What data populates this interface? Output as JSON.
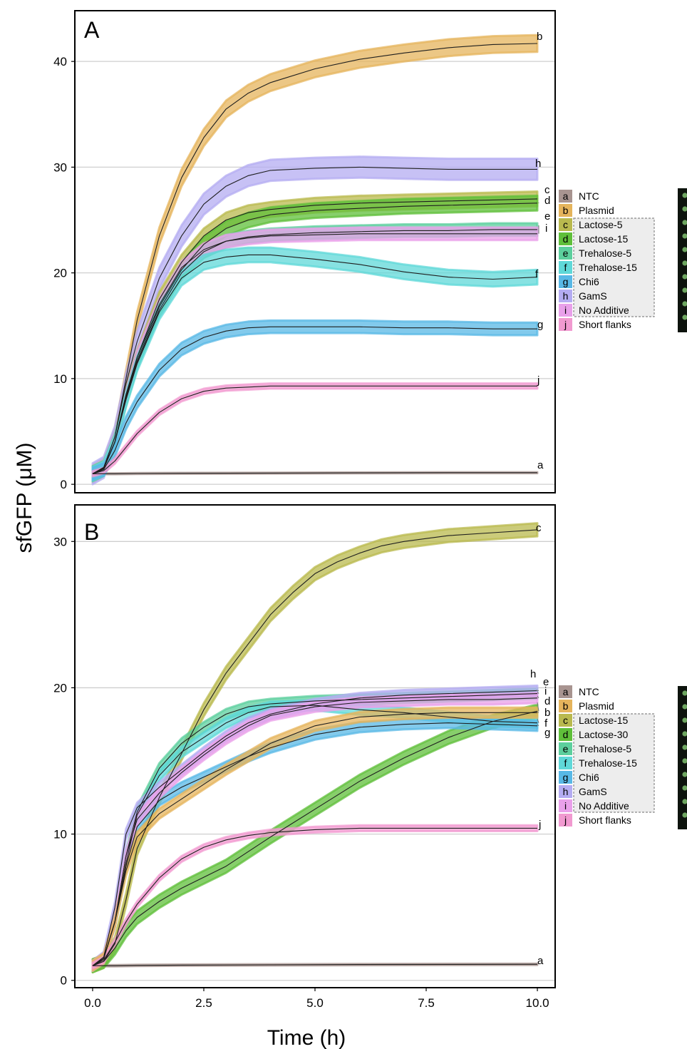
{
  "axis_titles": {
    "y": "sfGFP (μM)",
    "x": "Time (h)"
  },
  "colors": {
    "a": "#a89490",
    "b": "#e5b45c",
    "c": "#b9b94e",
    "d": "#5fbf3a",
    "e": "#5ccf9d",
    "f": "#5fd8d8",
    "g": "#58b8e6",
    "h": "#b4acf2",
    "i": "#e9a0ea",
    "j": "#f19ad0"
  },
  "chart_data": [
    {
      "panel": "A",
      "type": "line",
      "xlabel": "Time (h)",
      "ylabel": "sfGFP (μM)",
      "xlim": [
        -0.4,
        10.4
      ],
      "ylim": [
        -0.8,
        44.8
      ],
      "xticks": [
        "0.0",
        "2.5",
        "5.0",
        "7.5",
        "10.0"
      ],
      "yticks": [
        0,
        10,
        20,
        30,
        40
      ],
      "grid": "horizontal",
      "legend_position": "right",
      "legend": [
        {
          "key": "a",
          "label": "NTC"
        },
        {
          "key": "b",
          "label": "Plasmid"
        },
        {
          "key": "c",
          "label": "Lactose-5"
        },
        {
          "key": "d",
          "label": "Lactose-15"
        },
        {
          "key": "e",
          "label": "Trehalose-5"
        },
        {
          "key": "f",
          "label": "Trehalose-15"
        },
        {
          "key": "g",
          "label": "Chi6"
        },
        {
          "key": "h",
          "label": "GamS"
        },
        {
          "key": "i",
          "label": "No Additive"
        },
        {
          "key": "j",
          "label": "Short flanks"
        }
      ],
      "series": [
        {
          "key": "a",
          "x": [
            0,
            0.25,
            0.5,
            1,
            2,
            4,
            6,
            8,
            10
          ],
          "y": [
            1,
            1,
            1,
            1.02,
            1.04,
            1.06,
            1.08,
            1.1,
            1.1
          ],
          "band": 0.05
        },
        {
          "key": "b",
          "x": [
            0,
            0.25,
            0.5,
            0.75,
            1,
            1.5,
            2,
            2.5,
            3,
            3.5,
            4,
            5,
            6,
            7,
            8,
            9,
            10
          ],
          "y": [
            1,
            1.6,
            4.5,
            10,
            15.5,
            23.5,
            29,
            32.8,
            35.5,
            37,
            38,
            39.3,
            40.2,
            40.8,
            41.3,
            41.6,
            41.7
          ],
          "band": 0.8
        },
        {
          "key": "h",
          "x": [
            0,
            0.25,
            0.5,
            0.75,
            1,
            1.5,
            2,
            2.5,
            3,
            3.5,
            4,
            5,
            6,
            7,
            8,
            9,
            10
          ],
          "y": [
            1,
            1.6,
            4.5,
            9.5,
            13.5,
            19.5,
            23.5,
            26.5,
            28.2,
            29.2,
            29.7,
            29.9,
            30,
            29.9,
            29.8,
            29.8,
            29.8
          ],
          "band": 1.0
        },
        {
          "key": "c",
          "x": [
            0,
            0.25,
            0.5,
            0.75,
            1,
            1.5,
            2,
            2.5,
            3,
            3.5,
            4,
            5,
            6,
            7,
            8,
            9,
            10
          ],
          "y": [
            1,
            1.5,
            4,
            8.5,
            12,
            17.5,
            21,
            23.5,
            25,
            25.7,
            26,
            26.4,
            26.6,
            26.7,
            26.8,
            26.9,
            27
          ],
          "band": 0.7
        },
        {
          "key": "d",
          "x": [
            0,
            0.25,
            0.5,
            0.75,
            1,
            1.5,
            2,
            2.5,
            3,
            3.5,
            4,
            5,
            6,
            7,
            8,
            9,
            10
          ],
          "y": [
            1,
            1.5,
            4,
            8.2,
            11.7,
            16.8,
            20.3,
            22.7,
            24.2,
            25,
            25.5,
            25.9,
            26.1,
            26.3,
            26.4,
            26.5,
            26.6
          ],
          "band": 0.7
        },
        {
          "key": "e",
          "x": [
            0,
            0.25,
            0.5,
            0.75,
            1,
            1.5,
            2,
            2.5,
            3,
            3.5,
            4,
            5,
            6,
            7,
            8,
            9,
            10
          ],
          "y": [
            1,
            1.5,
            4,
            8,
            11.5,
            16.5,
            20,
            22,
            23,
            23.4,
            23.6,
            23.8,
            23.9,
            24,
            24,
            24.1,
            24.1
          ],
          "band": 0.6
        },
        {
          "key": "i",
          "x": [
            0,
            0.25,
            0.5,
            0.75,
            1,
            1.5,
            2,
            2.5,
            3,
            3.5,
            4,
            5,
            6,
            7,
            8,
            9,
            10
          ],
          "y": [
            1,
            1.5,
            4,
            8.3,
            12,
            17,
            20.5,
            22.2,
            23,
            23.3,
            23.5,
            23.6,
            23.7,
            23.7,
            23.7,
            23.7,
            23.7
          ],
          "band": 0.6
        },
        {
          "key": "f",
          "x": [
            0,
            0.25,
            0.5,
            0.75,
            1,
            1.5,
            2,
            2.5,
            3,
            3.5,
            4,
            5,
            6,
            7,
            8,
            9,
            10
          ],
          "y": [
            1,
            1.5,
            4,
            8,
            11.4,
            16.3,
            19.5,
            21,
            21.5,
            21.7,
            21.7,
            21.3,
            20.8,
            20.1,
            19.6,
            19.4,
            19.6
          ],
          "band": 0.7
        },
        {
          "key": "g",
          "x": [
            0,
            0.25,
            0.5,
            0.75,
            1,
            1.5,
            2,
            2.5,
            3,
            3.5,
            4,
            5,
            6,
            7,
            8,
            9,
            10
          ],
          "y": [
            1,
            1.4,
            3.2,
            5.8,
            7.8,
            10.8,
            12.8,
            13.9,
            14.5,
            14.8,
            14.9,
            14.9,
            14.9,
            14.8,
            14.8,
            14.7,
            14.7
          ],
          "band": 0.6
        },
        {
          "key": "j",
          "x": [
            0,
            0.25,
            0.5,
            0.75,
            1,
            1.5,
            2,
            2.5,
            3,
            3.5,
            4,
            5,
            6,
            7,
            8,
            9,
            10
          ],
          "y": [
            1,
            1.3,
            2.2,
            3.5,
            4.8,
            6.8,
            8.1,
            8.8,
            9.1,
            9.2,
            9.3,
            9.3,
            9.3,
            9.3,
            9.3,
            9.3,
            9.3
          ],
          "band": 0.25
        }
      ],
      "end_labels": [
        {
          "key": "b",
          "text": "b"
        },
        {
          "key": "h",
          "text": "h"
        },
        {
          "key": "c",
          "text": "c"
        },
        {
          "key": "d",
          "text": "d"
        },
        {
          "key": "e",
          "text": "e"
        },
        {
          "key": "i",
          "text": "i"
        },
        {
          "key": "f",
          "text": "f"
        },
        {
          "key": "g",
          "text": "g"
        },
        {
          "key": "j",
          "text": "j"
        },
        {
          "key": "a",
          "text": "a"
        }
      ]
    },
    {
      "panel": "B",
      "type": "line",
      "xlabel": "Time (h)",
      "ylabel": "sfGFP (μM)",
      "xlim": [
        -0.4,
        10.4
      ],
      "ylim": [
        -0.5,
        32.5
      ],
      "xticks": [
        "0.0",
        "2.5",
        "5.0",
        "7.5",
        "10.0"
      ],
      "yticks": [
        0,
        10,
        20,
        30
      ],
      "grid": "horizontal",
      "legend_position": "right",
      "legend": [
        {
          "key": "a",
          "label": "NTC"
        },
        {
          "key": "b",
          "label": "Plasmid"
        },
        {
          "key": "c",
          "label": "Lactose-15"
        },
        {
          "key": "d",
          "label": "Lactose-30"
        },
        {
          "key": "e",
          "label": "Trehalose-5"
        },
        {
          "key": "f",
          "label": "Trehalose-15"
        },
        {
          "key": "g",
          "label": "Chi6"
        },
        {
          "key": "h",
          "label": "GamS"
        },
        {
          "key": "i",
          "label": "No Additive"
        },
        {
          "key": "j",
          "label": "Short flanks"
        }
      ],
      "series": [
        {
          "key": "a",
          "x": [
            0,
            0.5,
            1,
            2,
            4,
            6,
            8,
            10
          ],
          "y": [
            1,
            1,
            1.02,
            1.04,
            1.06,
            1.08,
            1.09,
            1.1
          ],
          "band": 0.05
        },
        {
          "key": "c",
          "x": [
            0,
            0.25,
            0.5,
            0.75,
            1,
            1.5,
            2,
            2.5,
            3,
            3.5,
            4,
            4.5,
            5,
            5.5,
            6,
            6.5,
            7,
            7.5,
            8,
            9,
            10
          ],
          "y": [
            1,
            1.3,
            2.5,
            5.5,
            9,
            12.5,
            15.5,
            18.5,
            21,
            23,
            25,
            26.5,
            27.8,
            28.6,
            29.2,
            29.7,
            30,
            30.2,
            30.4,
            30.6,
            30.8
          ],
          "band": 0.45
        },
        {
          "key": "d",
          "x": [
            0,
            0.25,
            0.5,
            0.75,
            1,
            1.5,
            2,
            3,
            4,
            5,
            6,
            7,
            8,
            9,
            10
          ],
          "y": [
            1,
            1.3,
            2.2,
            3.4,
            4.3,
            5.4,
            6.3,
            7.8,
            9.8,
            11.7,
            13.6,
            15.2,
            16.6,
            17.7,
            18.4
          ],
          "band": 0.45
        },
        {
          "key": "e",
          "x": [
            0,
            0.25,
            0.5,
            0.75,
            1,
            1.5,
            2,
            2.5,
            3,
            3.5,
            4,
            5,
            6,
            7,
            8,
            9,
            10
          ],
          "y": [
            1,
            1.5,
            4,
            8.5,
            11.5,
            14.5,
            16.2,
            17.3,
            18.2,
            18.7,
            18.9,
            19.1,
            19.2,
            19.3,
            19.4,
            19.5,
            19.6
          ],
          "band": 0.35
        },
        {
          "key": "f",
          "x": [
            0,
            0.25,
            0.5,
            0.75,
            1,
            1.5,
            2,
            2.5,
            3,
            3.5,
            4,
            5,
            6,
            7,
            8,
            9,
            10
          ],
          "y": [
            1,
            1.5,
            4,
            8,
            11.3,
            14,
            15.6,
            16.6,
            17.6,
            18.3,
            18.7,
            18.8,
            18.5,
            18.3,
            18,
            17.7,
            17.6
          ],
          "band": 0.35
        },
        {
          "key": "g",
          "x": [
            0,
            0.25,
            0.5,
            0.75,
            1,
            1.5,
            2,
            2.5,
            3,
            3.5,
            4,
            5,
            6,
            7,
            8,
            9,
            10
          ],
          "y": [
            1,
            1.5,
            4,
            7.8,
            10.5,
            12.3,
            13.2,
            13.9,
            14.6,
            15.3,
            15.9,
            16.8,
            17.3,
            17.5,
            17.6,
            17.5,
            17.4
          ],
          "band": 0.35
        },
        {
          "key": "h",
          "x": [
            0,
            0.25,
            0.5,
            0.75,
            1,
            1.5,
            2,
            2.5,
            3,
            3.5,
            4,
            5,
            6,
            7,
            8,
            9,
            10
          ],
          "y": [
            1,
            1.6,
            5,
            10,
            11.8,
            13.2,
            14.4,
            15.6,
            16.7,
            17.6,
            18.2,
            18.9,
            19.3,
            19.5,
            19.6,
            19.7,
            19.8
          ],
          "band": 0.35
        },
        {
          "key": "i",
          "x": [
            0,
            0.25,
            0.5,
            0.75,
            1,
            1.5,
            2,
            2.5,
            3,
            3.5,
            4,
            5,
            6,
            7,
            8,
            9,
            10
          ],
          "y": [
            1,
            1.5,
            4,
            8.5,
            11,
            12.8,
            14.2,
            15.4,
            16.5,
            17.4,
            18.1,
            18.7,
            19,
            19.1,
            19.2,
            19.2,
            19.3
          ],
          "band": 0.35
        },
        {
          "key": "b",
          "x": [
            0,
            0.25,
            0.5,
            0.75,
            1,
            1.5,
            2,
            2.5,
            3,
            3.5,
            4,
            5,
            6,
            7,
            8,
            9,
            10
          ],
          "y": [
            1,
            1.5,
            4,
            7.5,
            9.8,
            11.4,
            12.4,
            13.4,
            14.4,
            15.3,
            16.2,
            17.4,
            18,
            18.2,
            18.3,
            18.3,
            18.3
          ],
          "band": 0.35
        },
        {
          "key": "j",
          "x": [
            0,
            0.25,
            0.5,
            0.75,
            1,
            1.5,
            2,
            2.5,
            3,
            3.5,
            4,
            5,
            6,
            7,
            8,
            9,
            10
          ],
          "y": [
            1,
            1.4,
            2.6,
            4,
            5.2,
            7,
            8.3,
            9.1,
            9.6,
            9.9,
            10.1,
            10.3,
            10.4,
            10.4,
            10.4,
            10.4,
            10.4
          ],
          "band": 0.2
        }
      ],
      "end_labels": [
        {
          "key": "c",
          "text": "c"
        },
        {
          "key": "h",
          "text": "h"
        },
        {
          "key": "e",
          "text": "e"
        },
        {
          "key": "i",
          "text": "i"
        },
        {
          "key": "d",
          "text": "d"
        },
        {
          "key": "b",
          "text": "b"
        },
        {
          "key": "f",
          "text": "f"
        },
        {
          "key": "g",
          "text": "g"
        },
        {
          "key": "j",
          "text": "j"
        },
        {
          "key": "a",
          "text": "a"
        }
      ]
    }
  ]
}
